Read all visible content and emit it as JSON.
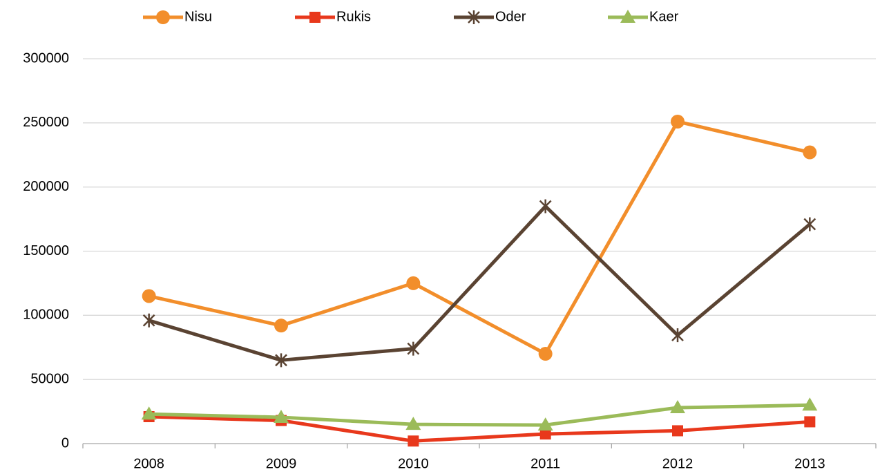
{
  "chart_data": {
    "type": "line",
    "categories": [
      "2008",
      "2009",
      "2010",
      "2011",
      "2012",
      "2013"
    ],
    "series": [
      {
        "name": "Nisu",
        "color": "#f28e2b",
        "marker": "circle",
        "values": [
          115000,
          92000,
          125000,
          70000,
          251000,
          227000
        ]
      },
      {
        "name": "Rukis",
        "color": "#e8381c",
        "marker": "square",
        "values": [
          21000,
          18000,
          2000,
          7500,
          10000,
          17000
        ]
      },
      {
        "name": "Oder",
        "color": "#5a4332",
        "marker": "star",
        "values": [
          96000,
          65000,
          74000,
          185000,
          84500,
          171000
        ]
      },
      {
        "name": "Kaer",
        "color": "#9bbb59",
        "marker": "triangle",
        "values": [
          23000,
          20500,
          15000,
          14500,
          28000,
          30000
        ]
      }
    ],
    "ylim": [
      0,
      300000
    ],
    "yticks": [
      0,
      50000,
      100000,
      150000,
      200000,
      250000,
      300000
    ],
    "grid": true,
    "legend": "top"
  }
}
